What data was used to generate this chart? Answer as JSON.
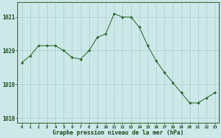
{
  "x": [
    0,
    1,
    2,
    3,
    4,
    5,
    6,
    7,
    8,
    9,
    10,
    11,
    12,
    13,
    14,
    15,
    16,
    17,
    18,
    19,
    20,
    21,
    22,
    23
  ],
  "y": [
    1019.65,
    1019.85,
    1020.15,
    1020.15,
    1020.15,
    1020.0,
    1019.8,
    1019.75,
    1020.0,
    1020.4,
    1020.5,
    1021.1,
    1021.0,
    1021.0,
    1020.7,
    1020.15,
    1019.7,
    1019.35,
    1019.05,
    1018.75,
    1018.45,
    1018.45,
    1018.6,
    1018.75
  ],
  "line_color": "#2d6a2d",
  "marker_color": "#2d6a2d",
  "bg_color": "#cce8e8",
  "grid_color": "#aacccc",
  "xlabel": "Graphe pression niveau de la mer (hPa)",
  "xlabel_color": "#1a4a1a",
  "ylabel_ticks": [
    1018,
    1019,
    1020,
    1021
  ],
  "xlim": [
    -0.5,
    23.5
  ],
  "ylim": [
    1017.85,
    1021.45
  ],
  "axis_color": "#336633",
  "tick_color": "#1a4a1a",
  "xtick_fontsize": 4.5,
  "ytick_fontsize": 5.5,
  "xlabel_fontsize": 6.0
}
